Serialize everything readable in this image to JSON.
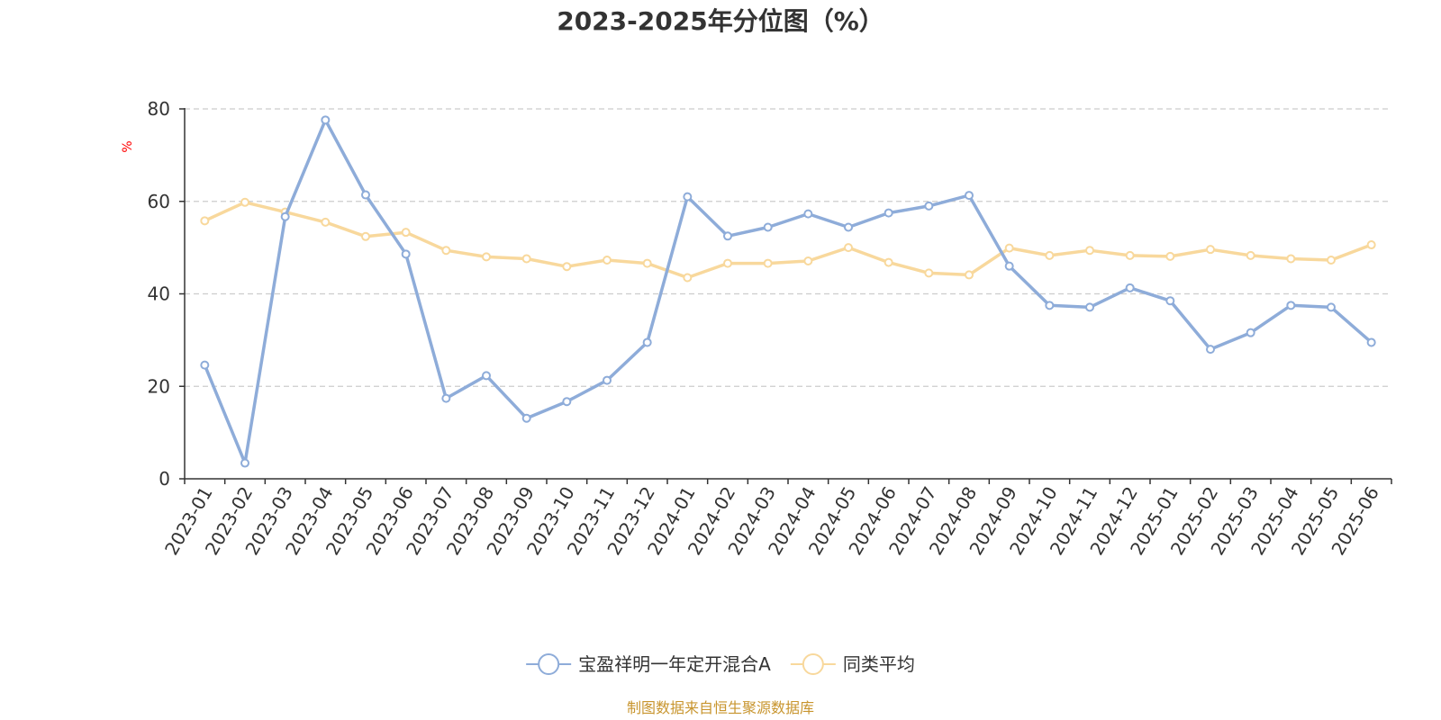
{
  "chart_data": {
    "type": "line",
    "title": "2023-2025年分位图（%）",
    "ylabel": "%",
    "xlabel": "",
    "ylim": [
      0,
      80
    ],
    "yticks": [
      0,
      20,
      40,
      60,
      80
    ],
    "grid": true,
    "legend_position": "bottom-center",
    "categories": [
      "2023-01",
      "2023-02",
      "2023-03",
      "2023-04",
      "2023-05",
      "2023-06",
      "2023-07",
      "2023-08",
      "2023-09",
      "2023-10",
      "2023-11",
      "2023-12",
      "2024-01",
      "2024-02",
      "2024-03",
      "2024-04",
      "2024-05",
      "2024-06",
      "2024-07",
      "2024-08",
      "2024-09",
      "2024-10",
      "2024-11",
      "2024-12",
      "2025-01",
      "2025-02",
      "2025-03",
      "2025-04",
      "2025-05",
      "2025-06"
    ],
    "series": [
      {
        "name": "宝盈祥明一年定开混合A",
        "color": "#8eacd9",
        "values": [
          24.6,
          3.4,
          56.7,
          77.6,
          61.4,
          48.6,
          17.4,
          22.3,
          13.1,
          16.7,
          21.3,
          29.5,
          61.0,
          52.5,
          54.4,
          57.3,
          54.4,
          57.5,
          59.0,
          61.3,
          46.0,
          37.5,
          37.1,
          41.3,
          38.5,
          28.0,
          31.6,
          37.5,
          37.1,
          29.5
        ]
      },
      {
        "name": "同类平均",
        "color": "#f8d89c",
        "values": [
          55.8,
          59.8,
          57.7,
          55.5,
          52.4,
          53.3,
          49.4,
          48.0,
          47.6,
          45.9,
          47.3,
          46.6,
          43.5,
          46.6,
          46.6,
          47.1,
          50.0,
          46.8,
          44.5,
          44.1,
          49.9,
          48.3,
          49.4,
          48.3,
          48.1,
          49.6,
          48.3,
          47.6,
          47.3,
          50.6
        ]
      }
    ]
  },
  "source_text": "制图数据来自恒生聚源数据库",
  "colors": {
    "axis": "#333333",
    "grid": "#cccccc",
    "unit_label": "#ff0000",
    "source_text": "#c8952e"
  }
}
